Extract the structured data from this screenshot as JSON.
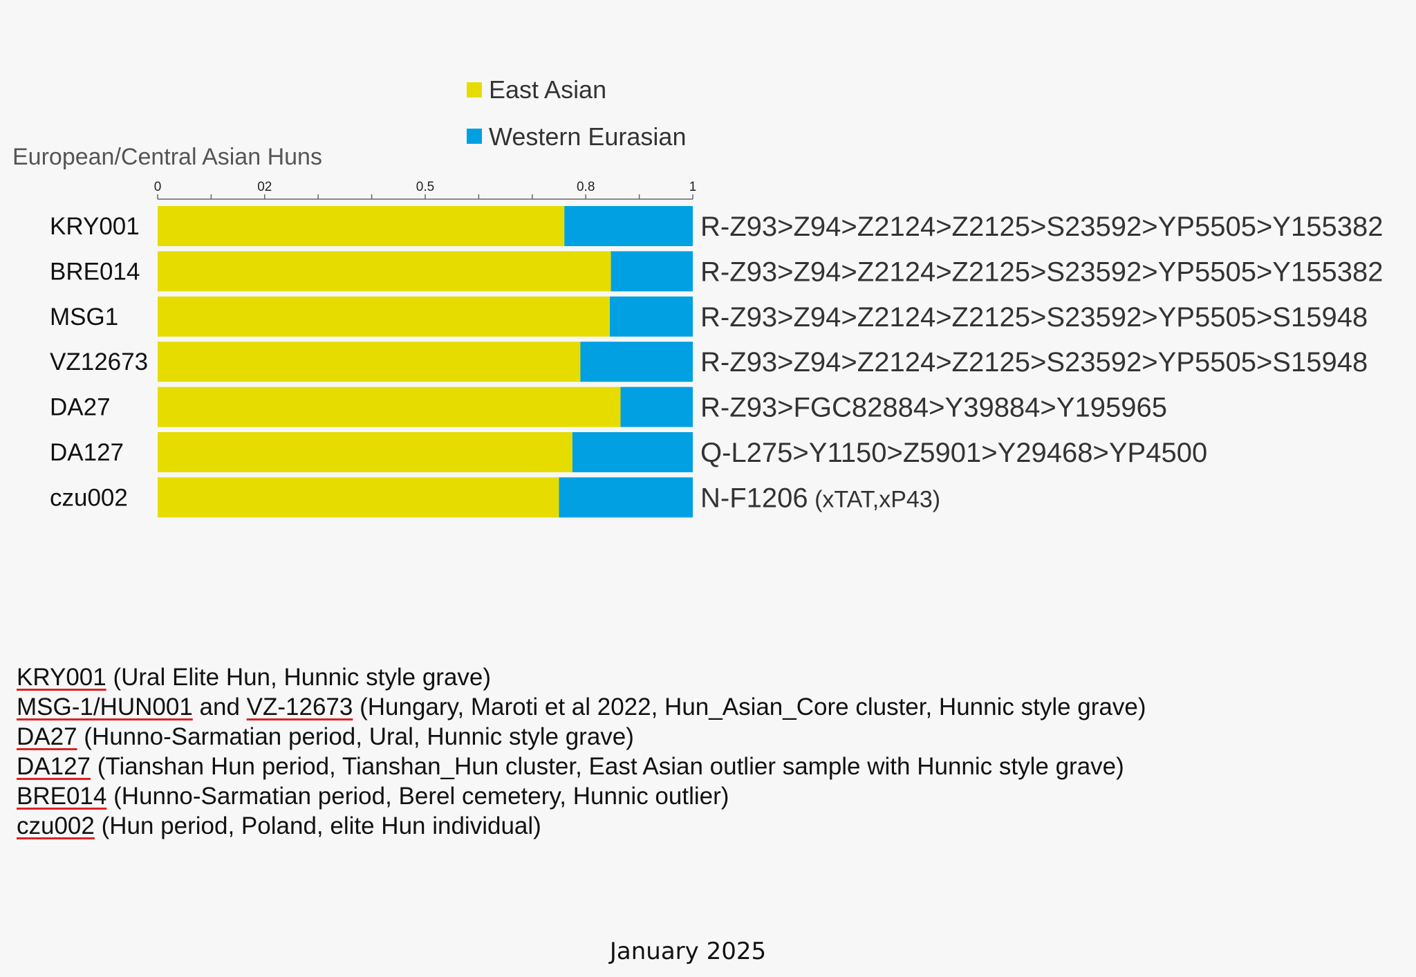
{
  "chart_data": {
    "type": "bar",
    "stacked": true,
    "orientation": "horizontal",
    "title": "European/Central Asian Huns",
    "x_ticks": [
      "0",
      "02",
      "0.5",
      "0.8",
      "1"
    ],
    "xlim": [
      0,
      1
    ],
    "categories": [
      "KRY001",
      "BRE014",
      "MSG1",
      "VZ12673",
      "DA27",
      "DA127",
      "czu002"
    ],
    "series": [
      {
        "name": "East Asian",
        "color": "#e6dc00",
        "values": [
          0.76,
          0.847,
          0.845,
          0.79,
          0.865,
          0.775,
          0.75
        ]
      },
      {
        "name": "Western Eurasian",
        "color": "#00a0e3",
        "values": [
          0.24,
          0.153,
          0.155,
          0.21,
          0.135,
          0.225,
          0.25
        ]
      }
    ],
    "bar_annotations": [
      {
        "main": "R-Z93>Z94>Z2124>Z2125>S23592>YP5505>Y155382",
        "note": ""
      },
      {
        "main": "R-Z93>Z94>Z2124>Z2125>S23592>YP5505>Y155382",
        "note": ""
      },
      {
        "main": "R-Z93>Z94>Z2124>Z2125>S23592>YP5505>S15948",
        "note": ""
      },
      {
        "main": "R-Z93>Z94>Z2124>Z2125>S23592>YP5505>S15948",
        "note": ""
      },
      {
        "main": "R-Z93>FGC82884>Y39884>Y195965",
        "note": ""
      },
      {
        "main": "Q-L275>Y1150>Z5901>Y29468>YP4500",
        "note": ""
      },
      {
        "main": "N-F1206",
        "note": "(xTAT,xP43)"
      }
    ],
    "legend_position": "top-center"
  },
  "notes": [
    {
      "ids": [
        "KRY001"
      ],
      "text": " (Ural Elite Hun, Hunnic style grave)"
    },
    {
      "ids": [
        "MSG-1/HUN001",
        "VZ-12673"
      ],
      "joiner": " and ",
      "text": " (Hungary, Maroti et al 2022, Hun_Asian_Core cluster, Hunnic style grave)"
    },
    {
      "ids": [
        "DA27"
      ],
      "text": " (Hunno-Sarmatian period, Ural, Hunnic style grave)"
    },
    {
      "ids": [
        "DA127"
      ],
      "text": " (Tianshan Hun period, Tianshan_Hun cluster, East Asian outlier sample with Hunnic style grave)"
    },
    {
      "ids": [
        "BRE014"
      ],
      "text": " (Hunno-Sarmatian period, Berel cemetery, Hunnic outlier)"
    },
    {
      "ids": [
        "czu002"
      ],
      "text": " (Hun period, Poland, elite Hun individual)"
    }
  ],
  "footer": {
    "date": "January 2025"
  }
}
